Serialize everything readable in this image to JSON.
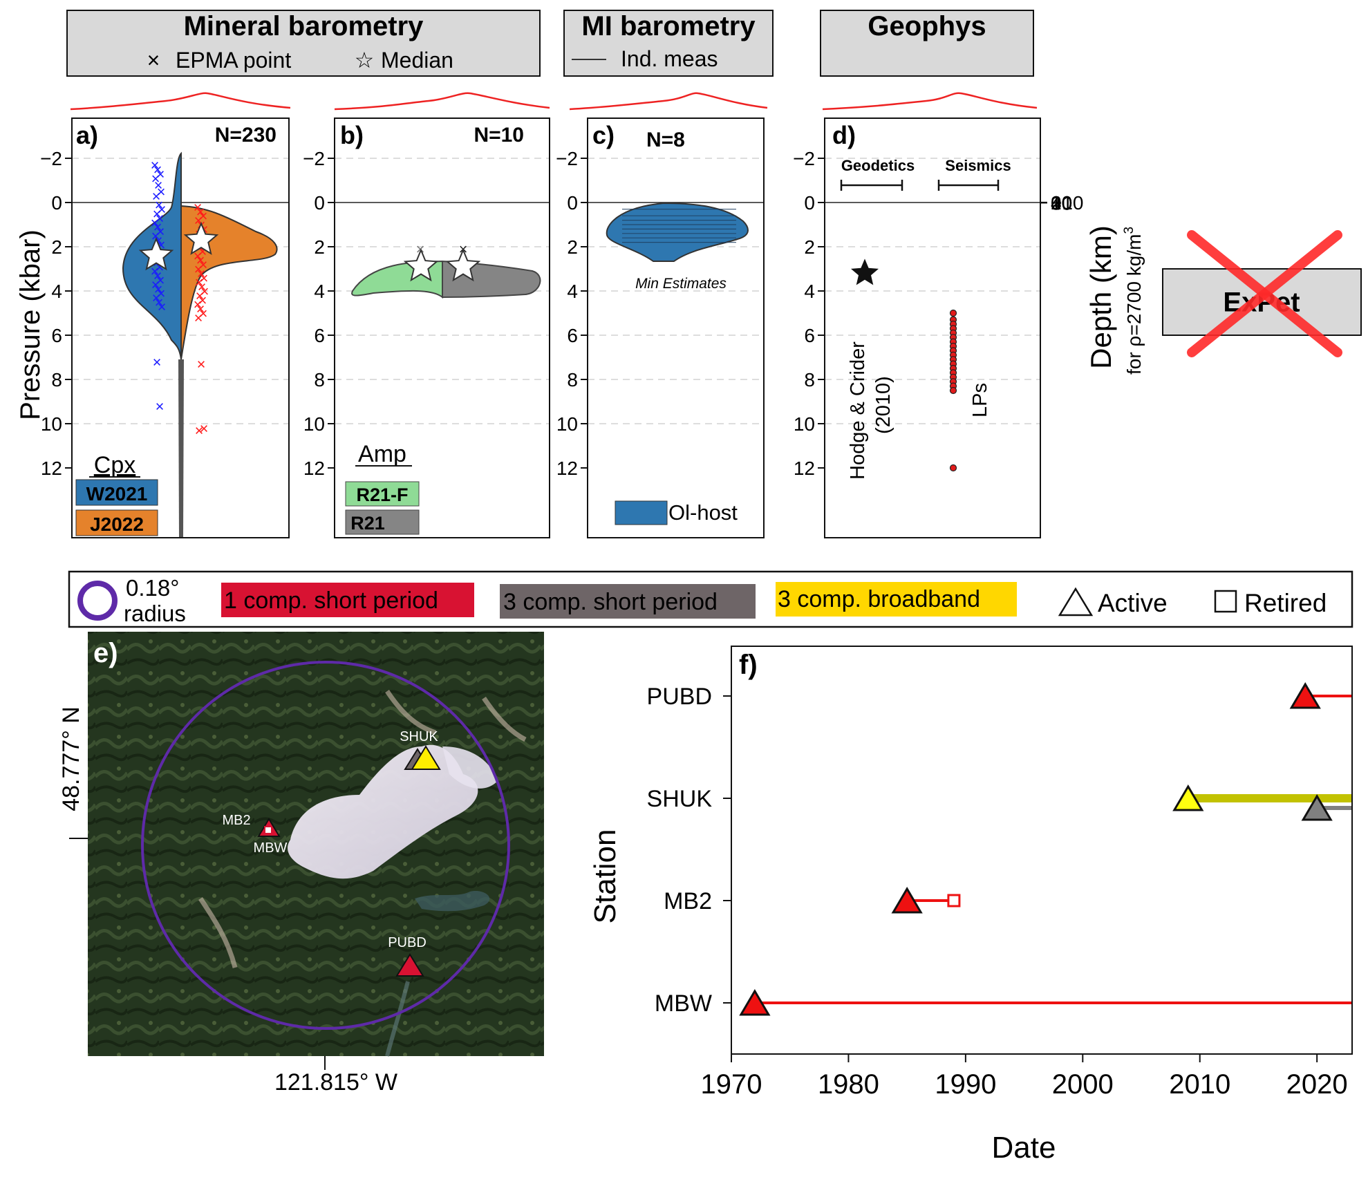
{
  "colors": {
    "cpx_w2021": "#2e77b0",
    "cpx_j2022": "#e5822b",
    "amp_r21f": "#8fdb96",
    "amp_r21": "#858585",
    "ol_host": "#2e77b0",
    "one_comp_short": "#d81232",
    "three_comp_short": "#6e6567",
    "three_comp_broadband": "#ffd700",
    "radius_ring": "#5e2aa8",
    "kde_curve": "#ee2222",
    "header_box": "#d9d9d9"
  },
  "headers": {
    "mineral": {
      "title": "Mineral barometry",
      "legend_point": "EPMA point",
      "legend_median": "Median"
    },
    "mi": {
      "title": "MI barometry",
      "legend_line": "Ind. meas"
    },
    "geophys": {
      "title": "Geophys"
    },
    "expet": {
      "title": "ExPet"
    }
  },
  "axes": {
    "pressure_label": "Pressure (kbar)",
    "depth_label": "Depth (km)",
    "depth_note": "for ρ=2700 kg/m",
    "depth_note_sup": "3",
    "pressure_ticks": [
      "−2",
      "0",
      "2",
      "4",
      "6",
      "8",
      "10",
      "12"
    ],
    "depth_ticks": [
      "−10",
      "0",
      "10",
      "20",
      "30",
      "40"
    ]
  },
  "legend": {
    "radius_value": "0.18°",
    "radius_word": "radius",
    "one_comp_short": "1 comp. short period",
    "three_comp_short": "3 comp. short period",
    "three_comp_broadband": "3 comp. broadband",
    "active": "Active",
    "retired": "Retired"
  },
  "map": {
    "panel_label": "e)",
    "lat_label": "48.777° N",
    "lon_label": "121.815° W",
    "stations": [
      "SHUK",
      "MB2",
      "MBW",
      "PUBD"
    ]
  },
  "chart_data": [
    {
      "type": "violin-scatter",
      "panel": "a)",
      "n_label": "N=230",
      "group_label": "Cpx",
      "y_unit": "kbar",
      "ylim": [
        12,
        -3
      ],
      "series": [
        {
          "name": "W2021",
          "median": 2.4,
          "points": [
            -1.7,
            -1.5,
            -1.3,
            -1.1,
            -0.8,
            -0.5,
            -0.3,
            0.1,
            0.3,
            0.5,
            0.7,
            0.9,
            1.1,
            1.3,
            1.5,
            1.7,
            1.9,
            2.1,
            2.3,
            2.5,
            2.7,
            2.9,
            3.1,
            3.3,
            3.5,
            3.7,
            3.9,
            4.1,
            4.3,
            4.5,
            4.7,
            7.2,
            9.2
          ]
        },
        {
          "name": "J2022",
          "median": 1.7,
          "points": [
            0.2,
            0.4,
            0.6,
            0.8,
            1.0,
            1.2,
            1.4,
            1.6,
            1.8,
            2.0,
            2.2,
            2.4,
            2.6,
            2.8,
            3.0,
            3.2,
            3.4,
            3.6,
            3.8,
            4.0,
            4.2,
            4.4,
            4.6,
            4.8,
            5.0,
            5.2,
            7.3,
            10.2,
            10.3
          ]
        }
      ]
    },
    {
      "type": "violin-scatter",
      "panel": "b)",
      "n_label": "N=10",
      "group_label": "Amp",
      "y_unit": "kbar",
      "ylim": [
        12,
        -3
      ],
      "series": [
        {
          "name": "R21-F",
          "median": 2.9,
          "points": [
            2.1,
            2.2,
            2.8,
            3.0,
            3.1
          ]
        },
        {
          "name": "R21",
          "median": 2.9,
          "points": [
            2.1,
            2.3,
            2.8,
            3.0,
            3.2
          ]
        }
      ]
    },
    {
      "type": "violin-lines",
      "panel": "c)",
      "n_label": "N=8",
      "annotation": "Min Estimates",
      "y_unit": "kbar",
      "ylim": [
        12,
        -3
      ],
      "series": [
        {
          "name": "Ol-host",
          "values": [
            0.3,
            0.6,
            0.8,
            1.0,
            1.2,
            1.4,
            1.6,
            1.8
          ]
        }
      ]
    },
    {
      "type": "scatter",
      "panel": "d)",
      "y_unit": "kbar",
      "ylim": [
        12,
        -3
      ],
      "groups": [
        {
          "label": "Geodetics"
        },
        {
          "label": "Seismics"
        }
      ],
      "geodetic": {
        "label": "Hodge & Crider",
        "label2": "(2010)",
        "value": 3.2
      },
      "seismic": {
        "label": "LPs",
        "values": [
          5.0,
          5.3,
          5.5,
          5.7,
          5.9,
          6.1,
          6.3,
          6.5,
          6.7,
          6.9,
          7.1,
          7.3,
          7.5,
          7.7,
          7.9,
          8.1,
          8.3,
          8.5,
          12.0
        ]
      }
    },
    {
      "type": "timeline",
      "panel": "f)",
      "xlabel": "Date",
      "ylabel": "Station",
      "xlim": [
        1970,
        2023
      ],
      "x_ticks": [
        "1970",
        "1980",
        "1990",
        "2000",
        "2010",
        "2020"
      ],
      "categories": [
        "PUBD",
        "SHUK",
        "MB2",
        "MBW"
      ],
      "series": [
        {
          "station": "PUBD",
          "type": "1 comp. short period",
          "start": 2019,
          "end": 2023,
          "status": "Active"
        },
        {
          "station": "SHUK",
          "type": "3 comp. broadband",
          "start": 2009,
          "end": 2023,
          "status": "Active"
        },
        {
          "station": "SHUK",
          "type": "3 comp. short period",
          "start": 2020,
          "end": 2023,
          "status": "Active"
        },
        {
          "station": "MB2",
          "type": "1 comp. short period",
          "start": 1985,
          "end": 1989,
          "status": "Retired"
        },
        {
          "station": "MBW",
          "type": "1 comp. short period",
          "start": 1972,
          "end": 2023,
          "status": "Active"
        }
      ]
    }
  ]
}
